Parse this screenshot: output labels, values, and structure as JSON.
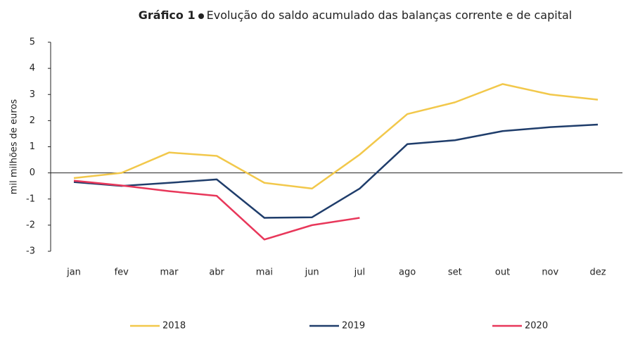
{
  "chart_data": {
    "type": "line",
    "label": "Gráfico 1",
    "title": "Evolução do saldo acumulado das balanças corrente e de capital",
    "y_label": "mil milhões de euros",
    "categories": [
      "jan",
      "fev",
      "mar",
      "abr",
      "mai",
      "jun",
      "jul",
      "ago",
      "set",
      "out",
      "nov",
      "dez"
    ],
    "series": [
      {
        "name": "2018",
        "color": "#f2c84b",
        "values": [
          -0.2,
          0.0,
          0.78,
          0.65,
          -0.38,
          -0.6,
          0.7,
          2.25,
          2.7,
          3.4,
          3.0,
          2.8
        ]
      },
      {
        "name": "2019",
        "color": "#1f3d6b",
        "values": [
          -0.35,
          -0.5,
          -0.38,
          -0.25,
          -1.72,
          -1.7,
          -0.6,
          1.1,
          1.25,
          1.6,
          1.75,
          1.85
        ]
      },
      {
        "name": "2020",
        "color": "#e8375a",
        "values": [
          -0.3,
          -0.48,
          -0.7,
          -0.88,
          -2.55,
          -2.0,
          -1.72,
          null,
          null,
          null,
          null,
          null
        ]
      }
    ],
    "ylim": [
      -3,
      5
    ],
    "yticks": [
      -3,
      -2,
      -1,
      0,
      1,
      2,
      3,
      4,
      5
    ],
    "legend": "bottom"
  }
}
